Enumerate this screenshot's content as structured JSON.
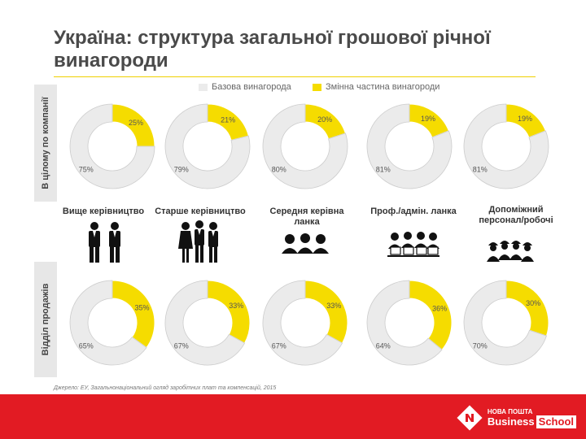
{
  "title": "Україна: структура загальної грошової річної винагороди",
  "legend": {
    "base_label": "Базова винагорода",
    "variable_label": "Змінна частина винагороди",
    "base_color": "#ebebeb",
    "variable_color": "#f5dc00"
  },
  "rows": {
    "company_label": "В цілому по компанії",
    "sales_label": "Відділ продажів"
  },
  "roles": [
    {
      "label": "Вище керівництво",
      "icon": "two-executives-icon"
    },
    {
      "label": "Старше керівництво",
      "icon": "three-managers-icon"
    },
    {
      "label": "Середня керівна ланка",
      "icon": "team-heads-icon"
    },
    {
      "label": "Проф./адмін. ланка",
      "icon": "office-staff-icon"
    },
    {
      "label": "Допоміжний персонал/робочі",
      "icon": "workers-icon"
    }
  ],
  "chart_data": [
    {
      "type": "pie",
      "title": "В цілому по компанії",
      "categories": [
        "Вище керівництво",
        "Старше керівництво",
        "Середня керівна ланка",
        "Проф./адмін. ланка",
        "Допоміжний персонал/робочі"
      ],
      "series": [
        {
          "name": "Базова винагорода",
          "values": [
            75,
            79,
            80,
            81,
            81
          ],
          "labels": [
            "75%",
            "79%",
            "80%",
            "81%",
            "81%"
          ]
        },
        {
          "name": "Змінна частина винагороди",
          "values": [
            25,
            21,
            20,
            19,
            19
          ],
          "labels": [
            "25%",
            "21%",
            "20%",
            "19%",
            "19%"
          ]
        }
      ]
    },
    {
      "type": "pie",
      "title": "Відділ продажів",
      "categories": [
        "Вище керівництво",
        "Старше керівництво",
        "Середня керівна ланка",
        "Проф./адмін. ланка",
        "Допоміжний персонал/робочі"
      ],
      "series": [
        {
          "name": "Базова винагорода",
          "values": [
            65,
            67,
            67,
            64,
            70
          ],
          "labels": [
            "65%",
            "67%",
            "67%",
            "64%",
            "70%"
          ]
        },
        {
          "name": "Змінна частина винагороди",
          "values": [
            35,
            33,
            33,
            36,
            30
          ],
          "labels": [
            "35%",
            "33%",
            "33%",
            "36%",
            "30%"
          ]
        }
      ]
    }
  ],
  "source": "Джерело: ЕУ, Загальнонаціональний огляд заробітних плат та компенсацій, 2015",
  "footer": {
    "logo_top": "НОВА ПОШТА",
    "logo_business": "Business",
    "logo_school": "School"
  }
}
